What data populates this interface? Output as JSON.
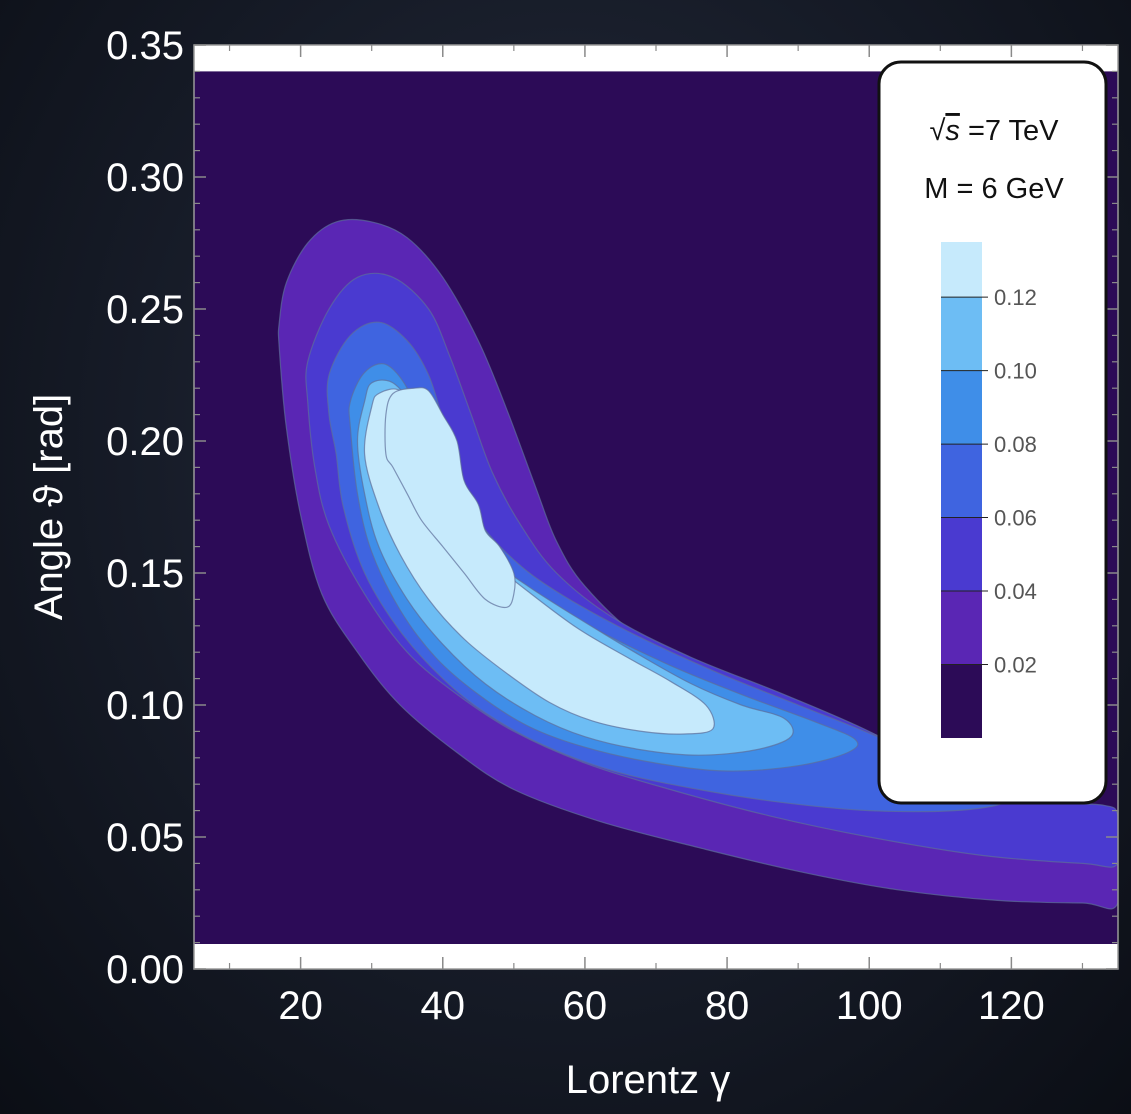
{
  "chart_data": {
    "type": "heatmap",
    "subtype": "filled-contour",
    "title": "",
    "xlabel": "Lorentz γ",
    "ylabel": "Angle ϑ [rad]",
    "xlim": [
      5,
      135
    ],
    "ylim": [
      0,
      0.35
    ],
    "data_region": {
      "x": [
        5,
        135
      ],
      "y": [
        0,
        0.34
      ]
    },
    "x_ticks": [
      20,
      40,
      60,
      80,
      100,
      120
    ],
    "x_tick_labels": [
      "20",
      "40",
      "60",
      "80",
      "100",
      "120"
    ],
    "y_ticks": [
      0,
      0.05,
      0.1,
      0.15,
      0.2,
      0.25,
      0.3,
      0.35
    ],
    "y_tick_labels": [
      "0.00",
      "0.05",
      "0.10",
      "0.15",
      "0.20",
      "0.25",
      "0.30",
      "0.35"
    ],
    "grid": false,
    "legend": {
      "placement": "top-right",
      "energy_prefix": "√",
      "energy_symbol": "s",
      "energy_suffix": " =7 TeV",
      "mass_label": "M = 6 GeV"
    },
    "colorbar": {
      "range": [
        0,
        0.135
      ],
      "ticks": [
        0.02,
        0.04,
        0.06,
        0.08,
        0.1,
        0.12
      ],
      "tick_labels": [
        "0.02",
        "0.04",
        "0.06",
        "0.08",
        "0.10",
        "0.12"
      ]
    },
    "colors": {
      "background_level": "#2c0b57",
      "levels": [
        "#2c0b57",
        "#5a26b4",
        "#4a3ad0",
        "#3f64e0",
        "#3f8ee8",
        "#6dbdf4",
        "#c6eafc"
      ],
      "contour_line": "#5c6e9a"
    },
    "contours": [
      {
        "level": 0.01,
        "points": [
          [
            17,
            0.235
          ],
          [
            17,
            0.245
          ],
          [
            18,
            0.26
          ],
          [
            21,
            0.275
          ],
          [
            25,
            0.283
          ],
          [
            30,
            0.283
          ],
          [
            35,
            0.277
          ],
          [
            40,
            0.262
          ],
          [
            45,
            0.238
          ],
          [
            49,
            0.212
          ],
          [
            53,
            0.183
          ],
          [
            56,
            0.162
          ],
          [
            60,
            0.145
          ],
          [
            68,
            0.125
          ],
          [
            80,
            0.108
          ],
          [
            92,
            0.098
          ],
          [
            104,
            0.085
          ],
          [
            114,
            0.07
          ],
          [
            120,
            0.062
          ],
          [
            127,
            0.058
          ],
          [
            133,
            0.057
          ],
          [
            135,
            0.055
          ],
          [
            135,
            0.025
          ],
          [
            130,
            0.025
          ],
          [
            118,
            0.026
          ],
          [
            104,
            0.03
          ],
          [
            90,
            0.037
          ],
          [
            76,
            0.046
          ],
          [
            62,
            0.056
          ],
          [
            50,
            0.068
          ],
          [
            42,
            0.082
          ],
          [
            34,
            0.1
          ],
          [
            28,
            0.12
          ],
          [
            23,
            0.142
          ],
          [
            20,
            0.172
          ],
          [
            18,
            0.205
          ]
        ]
      },
      {
        "level": 0.02,
        "points": [
          [
            21,
            0.215
          ],
          [
            21,
            0.23
          ],
          [
            24,
            0.25
          ],
          [
            28,
            0.262
          ],
          [
            33,
            0.262
          ],
          [
            38,
            0.25
          ],
          [
            41,
            0.232
          ],
          [
            44,
            0.21
          ],
          [
            47,
            0.188
          ],
          [
            51,
            0.168
          ],
          [
            56,
            0.15
          ],
          [
            64,
            0.133
          ],
          [
            75,
            0.118
          ],
          [
            88,
            0.104
          ],
          [
            100,
            0.09
          ],
          [
            110,
            0.075
          ],
          [
            118,
            0.067
          ],
          [
            126,
            0.063
          ],
          [
            133,
            0.062
          ],
          [
            135,
            0.058
          ],
          [
            135,
            0.04
          ],
          [
            130,
            0.04
          ],
          [
            116,
            0.043
          ],
          [
            100,
            0.05
          ],
          [
            86,
            0.058
          ],
          [
            72,
            0.068
          ],
          [
            60,
            0.078
          ],
          [
            50,
            0.09
          ],
          [
            42,
            0.104
          ],
          [
            35,
            0.12
          ],
          [
            29,
            0.142
          ],
          [
            24,
            0.168
          ],
          [
            22,
            0.19
          ]
        ]
      },
      {
        "level": 0.04,
        "points": [
          [
            24,
            0.21
          ],
          [
            24,
            0.225
          ],
          [
            27,
            0.24
          ],
          [
            31,
            0.245
          ],
          [
            35,
            0.238
          ],
          [
            38,
            0.225
          ],
          [
            40,
            0.208
          ],
          [
            42,
            0.188
          ],
          [
            45,
            0.17
          ],
          [
            50,
            0.155
          ],
          [
            56,
            0.143
          ],
          [
            66,
            0.128
          ],
          [
            78,
            0.113
          ],
          [
            90,
            0.1
          ],
          [
            102,
            0.087
          ],
          [
            112,
            0.074
          ],
          [
            118,
            0.068
          ],
          [
            119,
            0.063
          ],
          [
            112,
            0.06
          ],
          [
            100,
            0.06
          ],
          [
            88,
            0.063
          ],
          [
            76,
            0.068
          ],
          [
            64,
            0.075
          ],
          [
            54,
            0.085
          ],
          [
            46,
            0.097
          ],
          [
            40,
            0.11
          ],
          [
            34,
            0.128
          ],
          [
            29,
            0.15
          ],
          [
            26,
            0.175
          ],
          [
            25,
            0.195
          ]
        ]
      },
      {
        "level": 0.06,
        "points": [
          [
            27,
            0.205
          ],
          [
            27,
            0.215
          ],
          [
            29,
            0.226
          ],
          [
            32,
            0.229
          ],
          [
            35,
            0.22
          ],
          [
            37,
            0.205
          ],
          [
            39,
            0.19
          ],
          [
            41,
            0.175
          ],
          [
            44,
            0.162
          ],
          [
            48,
            0.15
          ],
          [
            54,
            0.14
          ],
          [
            62,
            0.128
          ],
          [
            72,
            0.115
          ],
          [
            82,
            0.104
          ],
          [
            92,
            0.094
          ],
          [
            98,
            0.087
          ],
          [
            97,
            0.082
          ],
          [
            90,
            0.077
          ],
          [
            80,
            0.075
          ],
          [
            70,
            0.078
          ],
          [
            60,
            0.084
          ],
          [
            52,
            0.092
          ],
          [
            45,
            0.104
          ],
          [
            39,
            0.118
          ],
          [
            34,
            0.136
          ],
          [
            30,
            0.158
          ],
          [
            28,
            0.18
          ]
        ]
      },
      {
        "level": 0.08,
        "points": [
          [
            28,
            0.2
          ],
          [
            29,
            0.215
          ],
          [
            30,
            0.222
          ],
          [
            33,
            0.222
          ],
          [
            36,
            0.212
          ],
          [
            38,
            0.198
          ],
          [
            40,
            0.182
          ],
          [
            43,
            0.168
          ],
          [
            47,
            0.155
          ],
          [
            52,
            0.145
          ],
          [
            59,
            0.133
          ],
          [
            67,
            0.12
          ],
          [
            75,
            0.108
          ],
          [
            82,
            0.1
          ],
          [
            88,
            0.095
          ],
          [
            89,
            0.088
          ],
          [
            84,
            0.083
          ],
          [
            76,
            0.081
          ],
          [
            68,
            0.083
          ],
          [
            60,
            0.088
          ],
          [
            53,
            0.096
          ],
          [
            46,
            0.108
          ],
          [
            40,
            0.123
          ],
          [
            35,
            0.14
          ],
          [
            31,
            0.16
          ],
          [
            29,
            0.18
          ]
        ]
      },
      {
        "level": 0.1,
        "points": [
          [
            29,
            0.195
          ],
          [
            30,
            0.213
          ],
          [
            31,
            0.218
          ],
          [
            34,
            0.219
          ],
          [
            36,
            0.208
          ],
          [
            38,
            0.194
          ],
          [
            40,
            0.18
          ],
          [
            43,
            0.166
          ],
          [
            47,
            0.154
          ],
          [
            52,
            0.143
          ],
          [
            59,
            0.129
          ],
          [
            66,
            0.118
          ],
          [
            72,
            0.109
          ],
          [
            77,
            0.1
          ],
          [
            78,
            0.091
          ],
          [
            74,
            0.089
          ],
          [
            68,
            0.09
          ],
          [
            61,
            0.094
          ],
          [
            55,
            0.101
          ],
          [
            49,
            0.112
          ],
          [
            43,
            0.125
          ],
          [
            38,
            0.14
          ],
          [
            34,
            0.157
          ],
          [
            31,
            0.175
          ]
        ]
      },
      {
        "level": 0.12,
        "points": [
          [
            32,
            0.195
          ],
          [
            32,
            0.21
          ],
          [
            33,
            0.218
          ],
          [
            36,
            0.22
          ],
          [
            38,
            0.219
          ],
          [
            40,
            0.21
          ],
          [
            42,
            0.2
          ],
          [
            43,
            0.185
          ],
          [
            45,
            0.176
          ],
          [
            46,
            0.166
          ],
          [
            48,
            0.16
          ],
          [
            50,
            0.15
          ],
          [
            50,
            0.142
          ],
          [
            49,
            0.137
          ],
          [
            46,
            0.14
          ],
          [
            43,
            0.15
          ],
          [
            40,
            0.16
          ],
          [
            37,
            0.17
          ],
          [
            35,
            0.18
          ],
          [
            33,
            0.19
          ]
        ]
      }
    ]
  }
}
